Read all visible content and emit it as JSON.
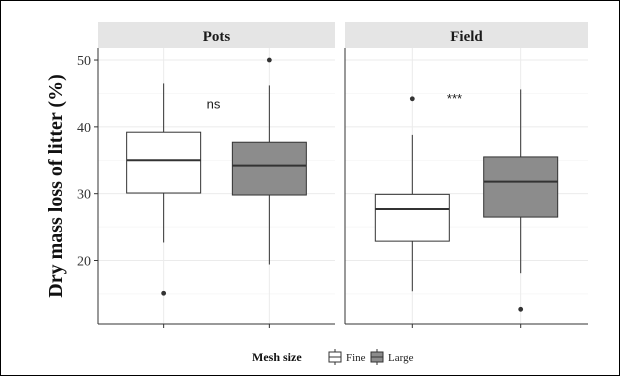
{
  "chart_data": {
    "type": "boxplot",
    "ylabel": "Dry mass loss of litter (%)",
    "yticks": [
      20,
      30,
      40,
      50
    ],
    "ylim": [
      10.5,
      51.8
    ],
    "grid": true,
    "legend": {
      "title": "Mesh size",
      "position": "bottom",
      "entries": [
        {
          "label": "Fine",
          "color": "#ffffff"
        },
        {
          "label": "Large",
          "color": "#8c8c8c"
        }
      ]
    },
    "panels": [
      {
        "title": "Pots",
        "significance": "ns",
        "boxes": [
          {
            "group": "Fine",
            "whisker_low": 22.7,
            "q1": 30.1,
            "median": 35.0,
            "q3": 39.2,
            "whisker_high": 46.5,
            "outliers": [
              15.1
            ]
          },
          {
            "group": "Large",
            "whisker_low": 19.4,
            "q1": 29.8,
            "median": 34.2,
            "q3": 37.7,
            "whisker_high": 46.2,
            "outliers": [
              50.0
            ]
          }
        ]
      },
      {
        "title": "Field",
        "significance": "***",
        "boxes": [
          {
            "group": "Fine",
            "whisker_low": 15.4,
            "q1": 22.9,
            "median": 27.7,
            "q3": 29.9,
            "whisker_high": 38.8,
            "outliers": [
              44.2
            ]
          },
          {
            "group": "Large",
            "whisker_low": 18.1,
            "q1": 26.5,
            "median": 31.8,
            "q3": 35.5,
            "whisker_high": 45.6,
            "outliers": [
              12.7
            ]
          }
        ]
      }
    ]
  },
  "colors": {
    "fine_fill": "#ffffff",
    "large_fill": "#8c8c8c",
    "strip_bg": "#e5e5e5",
    "grid": "#ebebeb"
  }
}
